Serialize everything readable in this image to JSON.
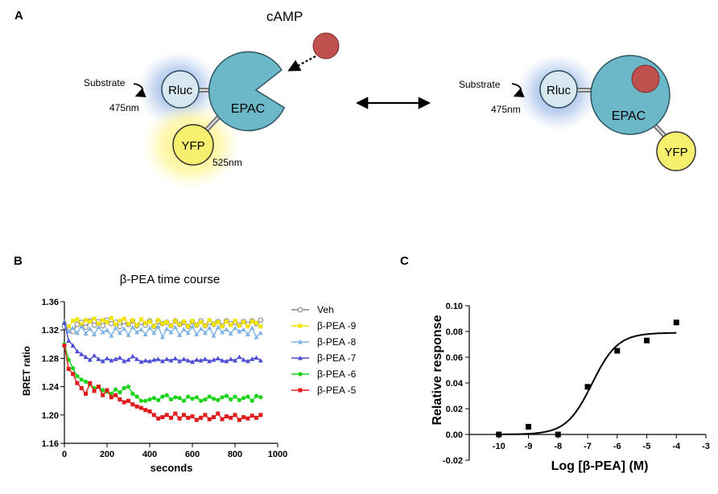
{
  "panels": {
    "a": {
      "letter": "A",
      "cAMP_label": "cAMP",
      "left": {
        "substrate_label": "Substrate",
        "rluc_label": "Rluc",
        "rluc_emission": "475nm",
        "epac_label": "EPAC",
        "yfp_label": "YFP",
        "yfp_emission": "525nm"
      },
      "right": {
        "substrate_label": "Substrate",
        "rluc_label": "Rluc",
        "rluc_emission": "475nm",
        "epac_label": "EPAC",
        "yfp_label": "YFP"
      }
    },
    "b": {
      "letter": "B"
    },
    "c": {
      "letter": "C"
    }
  },
  "colors": {
    "epac": "#6cb8c9",
    "camp": "#c0504d",
    "rluc_fill": "#d7e8f0",
    "rluc_glow": "#7aa0dd",
    "yfp_fill": "#f7ef6e",
    "yfp_glow": "#fff176"
  },
  "chart_data": [
    {
      "type": "line",
      "title": "β-PEA time course",
      "xlabel": "seconds",
      "ylabel": "BRET ratio",
      "xlim": [
        0,
        1000
      ],
      "ylim": [
        1.16,
        1.36
      ],
      "xticks": [
        0,
        200,
        400,
        600,
        800,
        1000
      ],
      "yticks": [
        1.16,
        1.2,
        1.24,
        1.28,
        1.32,
        1.36
      ],
      "xtick_labels": [
        "0",
        "200",
        "400",
        "600",
        "800",
        "1000"
      ],
      "ytick_labels": [
        "1.16",
        "1.20",
        "1.24",
        "1.28",
        "1.32",
        "1.36"
      ],
      "legend_position": "right",
      "x": [
        0,
        20,
        40,
        60,
        80,
        100,
        120,
        140,
        160,
        180,
        200,
        220,
        240,
        260,
        280,
        300,
        320,
        340,
        360,
        380,
        400,
        420,
        440,
        460,
        480,
        500,
        520,
        540,
        560,
        580,
        600,
        620,
        640,
        660,
        680,
        700,
        720,
        740,
        760,
        780,
        800,
        820,
        840,
        860,
        880,
        900,
        920
      ],
      "series": [
        {
          "name": "Veh",
          "label": "Veh",
          "color": "#808080",
          "marker": "open-circle",
          "values": [
            1.325,
            1.322,
            1.318,
            1.328,
            1.331,
            1.324,
            1.333,
            1.327,
            1.332,
            1.326,
            1.334,
            1.329,
            1.331,
            1.325,
            1.332,
            1.328,
            1.333,
            1.326,
            1.331,
            1.327,
            1.333,
            1.325,
            1.332,
            1.329,
            1.331,
            1.326,
            1.333,
            1.328,
            1.331,
            1.325,
            1.332,
            1.327,
            1.333,
            1.326,
            1.331,
            1.328,
            1.332,
            1.326,
            1.333,
            1.329,
            1.331,
            1.327,
            1.332,
            1.328,
            1.333,
            1.329,
            1.334
          ]
        },
        {
          "name": "β-PEA -9",
          "label": "β-PEA -9",
          "color": "#f2e400",
          "marker": "square",
          "values": [
            1.33,
            1.325,
            1.333,
            1.335,
            1.328,
            1.334,
            1.332,
            1.336,
            1.329,
            1.334,
            1.331,
            1.337,
            1.328,
            1.333,
            1.336,
            1.329,
            1.334,
            1.327,
            1.335,
            1.33,
            1.332,
            1.325,
            1.334,
            1.329,
            1.331,
            1.326,
            1.333,
            1.328,
            1.332,
            1.325,
            1.333,
            1.327,
            1.331,
            1.326,
            1.334,
            1.328,
            1.331,
            1.325,
            1.332,
            1.327,
            1.333,
            1.326,
            1.331,
            1.325,
            1.332,
            1.33,
            1.325
          ]
        },
        {
          "name": "β-PEA -8",
          "label": "β-PEA -8",
          "color": "#7fb2e5",
          "marker": "triangle",
          "values": [
            1.332,
            1.318,
            1.323,
            1.316,
            1.325,
            1.315,
            1.322,
            1.314,
            1.324,
            1.317,
            1.32,
            1.312,
            1.323,
            1.316,
            1.322,
            1.313,
            1.324,
            1.317,
            1.321,
            1.314,
            1.323,
            1.316,
            1.325,
            1.31,
            1.322,
            1.317,
            1.324,
            1.313,
            1.321,
            1.316,
            1.325,
            1.314,
            1.322,
            1.316,
            1.323,
            1.312,
            1.324,
            1.317,
            1.321,
            1.315,
            1.323,
            1.318,
            1.321,
            1.314,
            1.323,
            1.31,
            1.316
          ]
        },
        {
          "name": "β-PEA -7",
          "label": "β-PEA -7",
          "color": "#4b4bd6",
          "marker": "triangle",
          "values": [
            1.33,
            1.305,
            1.298,
            1.29,
            1.286,
            1.282,
            1.278,
            1.284,
            1.279,
            1.276,
            1.28,
            1.277,
            1.279,
            1.281,
            1.276,
            1.278,
            1.283,
            1.279,
            1.275,
            1.277,
            1.276,
            1.278,
            1.279,
            1.276,
            1.279,
            1.277,
            1.28,
            1.276,
            1.279,
            1.277,
            1.275,
            1.278,
            1.277,
            1.279,
            1.276,
            1.278,
            1.28,
            1.277,
            1.276,
            1.279,
            1.277,
            1.282,
            1.278,
            1.276,
            1.279,
            1.281,
            1.277
          ]
        },
        {
          "name": "β-PEA -6",
          "label": "β-PEA -6",
          "color": "#17d417",
          "marker": "circle",
          "values": [
            1.3,
            1.278,
            1.266,
            1.255,
            1.25,
            1.247,
            1.243,
            1.238,
            1.24,
            1.235,
            1.233,
            1.23,
            1.236,
            1.232,
            1.238,
            1.24,
            1.23,
            1.226,
            1.22,
            1.22,
            1.222,
            1.224,
            1.221,
            1.226,
            1.228,
            1.222,
            1.225,
            1.224,
            1.22,
            1.226,
            1.223,
            1.225,
            1.22,
            1.222,
            1.226,
            1.223,
            1.221,
            1.225,
            1.227,
            1.222,
            1.226,
            1.221,
            1.224,
            1.226,
            1.22,
            1.227,
            1.225
          ]
        },
        {
          "name": "β-PEA -5",
          "label": "β-PEA -5",
          "color": "#e01b1b",
          "marker": "square",
          "values": [
            1.298,
            1.265,
            1.258,
            1.245,
            1.238,
            1.23,
            1.245,
            1.234,
            1.24,
            1.228,
            1.235,
            1.225,
            1.228,
            1.222,
            1.218,
            1.22,
            1.215,
            1.212,
            1.21,
            1.207,
            1.205,
            1.2,
            1.195,
            1.197,
            1.2,
            1.196,
            1.202,
            1.195,
            1.2,
            1.196,
            1.198,
            1.193,
            1.196,
            1.2,
            1.194,
            1.197,
            1.202,
            1.194,
            1.198,
            1.196,
            1.2,
            1.193,
            1.197,
            1.195,
            1.199,
            1.196,
            1.2
          ]
        }
      ]
    },
    {
      "type": "scatter",
      "xlabel": "Log [β-PEA] (M)",
      "ylabel": "Relative response",
      "xlim": [
        -11,
        -3
      ],
      "ylim": [
        -0.02,
        0.1
      ],
      "xticks": [
        -10,
        -9,
        -8,
        -7,
        -6,
        -5,
        -4,
        -3
      ],
      "yticks": [
        -0.02,
        0.0,
        0.02,
        0.04,
        0.06,
        0.08,
        0.1
      ],
      "xtick_labels": [
        "-10",
        "-9",
        "-8",
        "-7",
        "-6",
        "-5",
        "-4",
        "-3"
      ],
      "ytick_labels": [
        "-0.02",
        "0.00",
        "0.02",
        "0.04",
        "0.06",
        "0.08",
        "0.10"
      ],
      "points": {
        "x": [
          -10,
          -9,
          -8,
          -7,
          -6,
          -5,
          -4
        ],
        "y": [
          0.0,
          0.006,
          0.0,
          0.037,
          0.065,
          0.073,
          0.087
        ]
      },
      "fit": {
        "model": "sigmoidal dose-response",
        "bottom": 0.0,
        "top": 0.079,
        "log_ec50": -6.85,
        "hill": 1.0
      }
    }
  ]
}
